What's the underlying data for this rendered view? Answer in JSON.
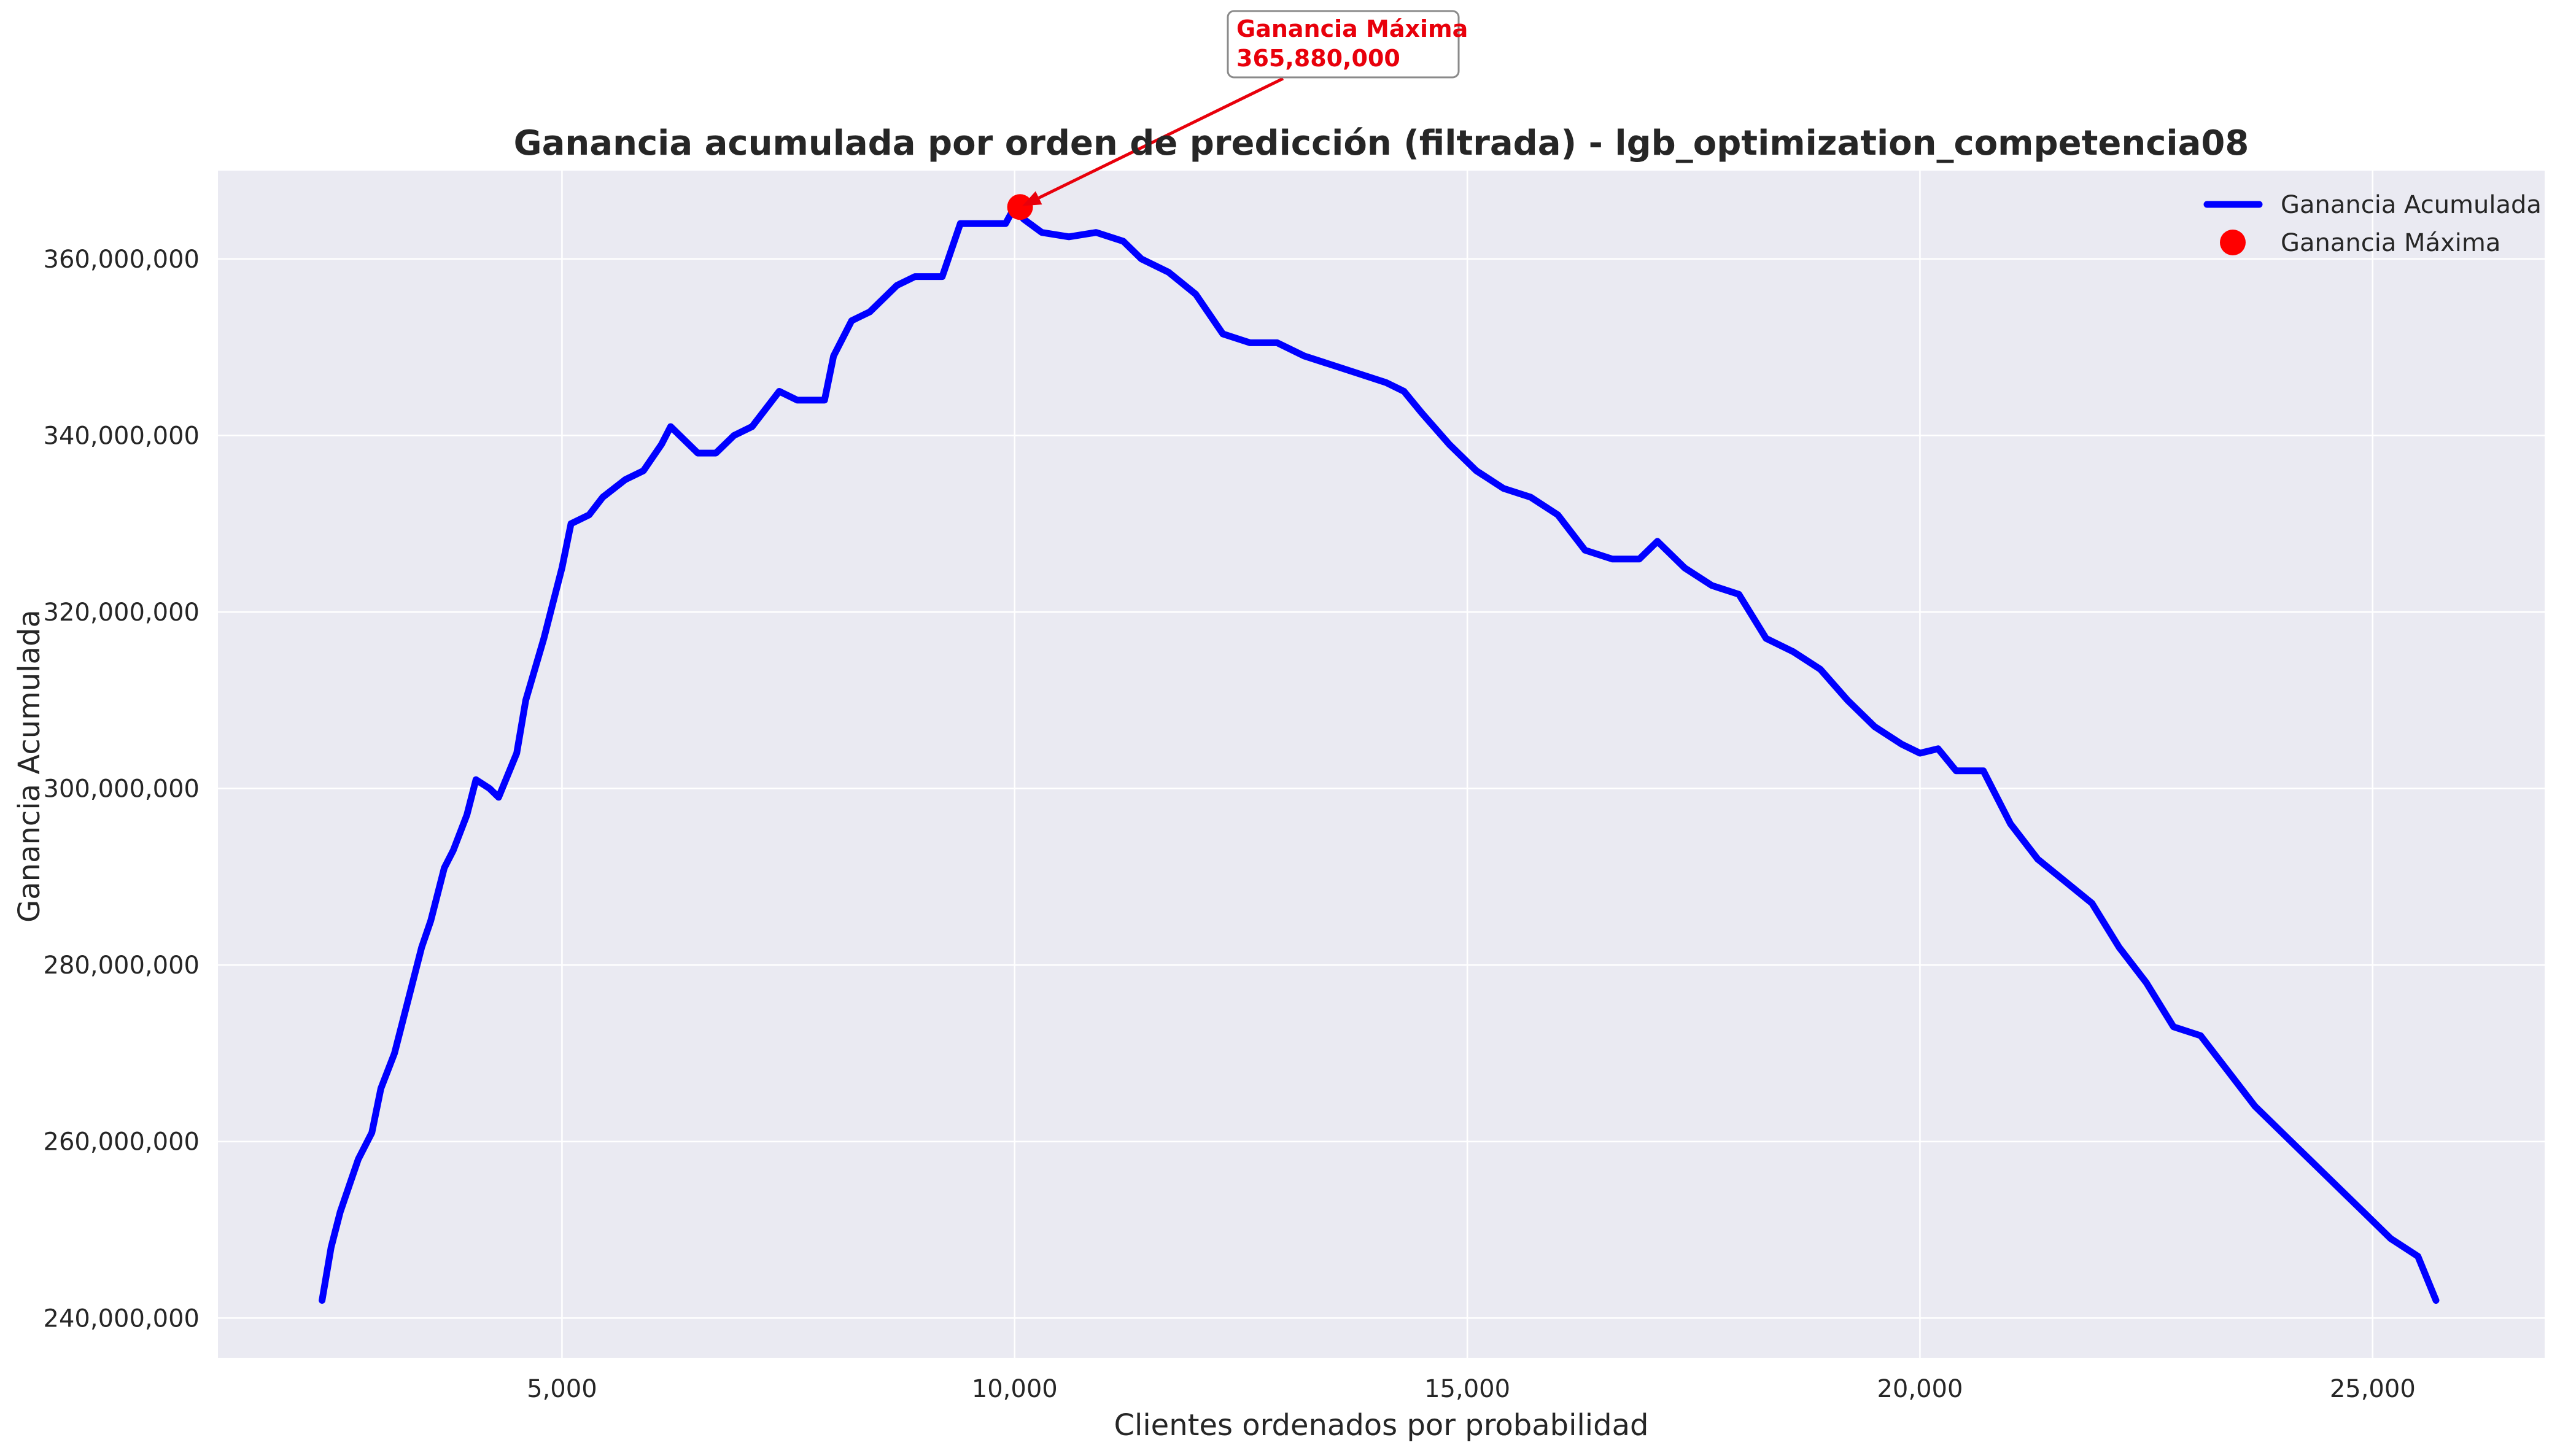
{
  "chart_data": {
    "type": "line",
    "title": "Ganancia acumulada por orden de predicción (filtrada) - lgb_optimization_competencia08",
    "xlabel": "Clientes ordenados por probabilidad",
    "ylabel": "Ganancia Acumulada",
    "xlim": [
      1200,
      26900
    ],
    "ylim": [
      235500000,
      370000000
    ],
    "xticks": [
      5000,
      10000,
      15000,
      20000,
      25000
    ],
    "xtick_labels": [
      "5,000",
      "10,000",
      "15,000",
      "20,000",
      "25,000"
    ],
    "yticks": [
      240000000,
      260000000,
      280000000,
      300000000,
      320000000,
      340000000,
      360000000
    ],
    "ytick_labels": [
      "240,000,000",
      "260,000,000",
      "280,000,000",
      "300,000,000",
      "320,000,000",
      "340,000,000",
      "360,000,000"
    ],
    "grid": true,
    "legend_position": "top-right",
    "series": [
      {
        "name": "Ganancia Acumulada",
        "color": "#0000ff",
        "x": [
          2350,
          2450,
          2550,
          2650,
          2750,
          2900,
          3000,
          3150,
          3300,
          3450,
          3550,
          3700,
          3800,
          3950,
          4050,
          4200,
          4300,
          4500,
          4600,
          4800,
          4900,
          5000,
          5100,
          5300,
          5450,
          5700,
          5900,
          6100,
          6200,
          6500,
          6700,
          6900,
          7100,
          7400,
          7600,
          7900,
          8000,
          8200,
          8400,
          8700,
          8900,
          9200,
          9400,
          9700,
          9900,
          10000,
          10100,
          10300,
          10600,
          10900,
          11200,
          11400,
          11700,
          12000,
          12300,
          12600,
          12900,
          13200,
          13500,
          13800,
          14100,
          14300,
          14500,
          14800,
          15100,
          15400,
          15700,
          16000,
          16300,
          16600,
          16900,
          17100,
          17400,
          17700,
          18000,
          18300,
          18600,
          18900,
          19200,
          19500,
          19800,
          20000,
          20200,
          20400,
          20700,
          21000,
          21300,
          21600,
          21900,
          22200,
          22500,
          22800,
          23100,
          23400,
          23700,
          24000,
          24300,
          24600,
          24900,
          25200,
          25500,
          25700
        ],
        "values": [
          242000000,
          248000000,
          252000000,
          255000000,
          258000000,
          261000000,
          266000000,
          270000000,
          276000000,
          282000000,
          285000000,
          291000000,
          293000000,
          297000000,
          301000000,
          300000000,
          299000000,
          304000000,
          310000000,
          317000000,
          321000000,
          325000000,
          330000000,
          331000000,
          333000000,
          335000000,
          336000000,
          339000000,
          341000000,
          338000000,
          338000000,
          340000000,
          341000000,
          345000000,
          344000000,
          344000000,
          349000000,
          353000000,
          354000000,
          357000000,
          358000000,
          358000000,
          364000000,
          364000000,
          364000000,
          365880000,
          364500000,
          363000000,
          362500000,
          363000000,
          362000000,
          360000000,
          358500000,
          356000000,
          351500000,
          350500000,
          350500000,
          349000000,
          348000000,
          347000000,
          346000000,
          345000000,
          342500000,
          339000000,
          336000000,
          334000000,
          333000000,
          331000000,
          327000000,
          326000000,
          326000000,
          328000000,
          325000000,
          323000000,
          322000000,
          317000000,
          315500000,
          313500000,
          310000000,
          307000000,
          305000000,
          304000000,
          304500000,
          302000000,
          302000000,
          296000000,
          292000000,
          289500000,
          287000000,
          282000000,
          278000000,
          273000000,
          272000000,
          268000000,
          264000000,
          261000000,
          258000000,
          255000000,
          252000000,
          249000000,
          247000000,
          242000000
        ]
      },
      {
        "name": "Ganancia Máxima",
        "color": "#ff0000",
        "x": [
          10060
        ],
        "values": [
          365880000
        ]
      }
    ],
    "annotation": {
      "line1": "Ganancia Máxima",
      "line2": "365,880,000",
      "x": 10060,
      "y": 365880000
    }
  }
}
